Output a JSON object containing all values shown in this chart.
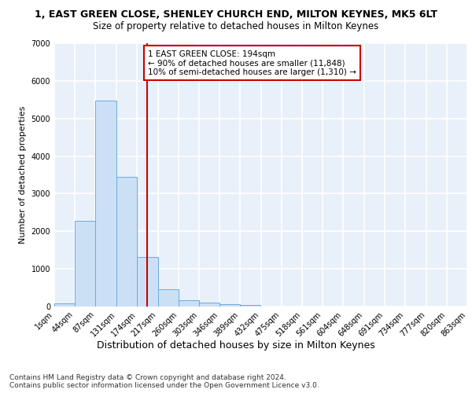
{
  "title1": "1, EAST GREEN CLOSE, SHENLEY CHURCH END, MILTON KEYNES, MK5 6LT",
  "title2": "Size of property relative to detached houses in Milton Keynes",
  "xlabel": "Distribution of detached houses by size in Milton Keynes",
  "ylabel": "Number of detached properties",
  "footnote": "Contains HM Land Registry data © Crown copyright and database right 2024.\nContains public sector information licensed under the Open Government Licence v3.0.",
  "bin_edges": [
    1,
    44,
    87,
    131,
    174,
    217,
    260,
    303,
    346,
    389,
    432,
    475,
    518,
    561,
    604,
    648,
    691,
    734,
    777,
    820,
    863
  ],
  "bar_heights": [
    80,
    2280,
    5480,
    3440,
    1320,
    460,
    175,
    100,
    60,
    40,
    0,
    0,
    0,
    0,
    0,
    0,
    0,
    0,
    0,
    0
  ],
  "bar_color": "#cce0f5",
  "bar_edge_color": "#6aabdd",
  "vline_x": 194,
  "vline_color": "#cc0000",
  "annotation_text": "1 EAST GREEN CLOSE: 194sqm\n← 90% of detached houses are smaller (11,848)\n10% of semi-detached houses are larger (1,310) →",
  "annotation_box_color": "#cc0000",
  "ylim": [
    0,
    7000
  ],
  "yticks": [
    0,
    1000,
    2000,
    3000,
    4000,
    5000,
    6000,
    7000
  ],
  "background_color": "#e8f0fa",
  "grid_color": "#ffffff",
  "title1_fontsize": 9,
  "title2_fontsize": 8.5,
  "xlabel_fontsize": 9,
  "ylabel_fontsize": 8,
  "tick_fontsize": 7,
  "annot_fontsize": 7.5,
  "footnote_fontsize": 6.5
}
